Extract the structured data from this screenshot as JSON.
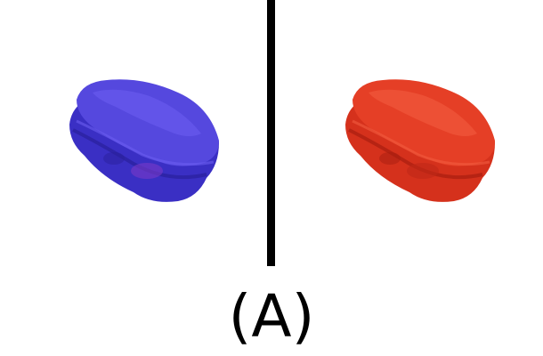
{
  "caption": "(A)",
  "images": {
    "left": {
      "tint": "#4a3fd8",
      "shade": "#2f24a8",
      "highlight": "#6a5ef0"
    },
    "right": {
      "tint": "#e23a22",
      "shade": "#b42414",
      "highlight": "#f0583e"
    }
  },
  "divider_color": "#000000"
}
